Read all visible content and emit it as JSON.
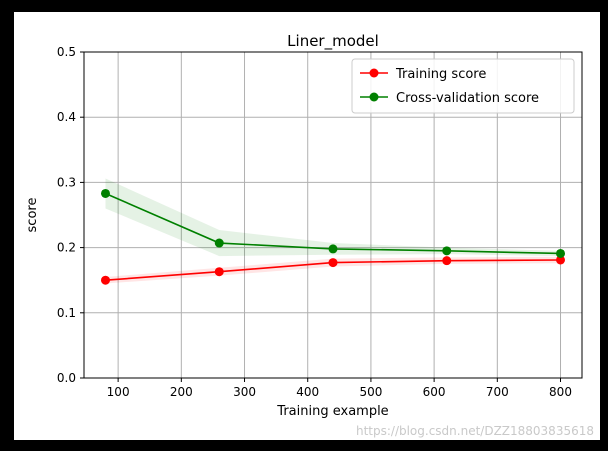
{
  "watermark": "https://blog.csdn.net/DZZ18803835618",
  "chart_data": {
    "type": "line",
    "title": "Liner_model",
    "xlabel": "Training example",
    "ylabel": "score",
    "xlim": [
      46,
      834
    ],
    "ylim": [
      0,
      0.5
    ],
    "xticks": [
      100,
      200,
      300,
      400,
      500,
      600,
      700,
      800
    ],
    "yticks": [
      0.0,
      0.1,
      0.2,
      0.3,
      0.4,
      0.5
    ],
    "grid": true,
    "legend_position": "upper-right",
    "x": [
      80,
      260,
      440,
      620,
      800
    ],
    "series": [
      {
        "name": "Training score",
        "color": "#ff0000",
        "band_color": "#ff0000",
        "values": [
          0.15,
          0.163,
          0.177,
          0.18,
          0.181
        ],
        "upper": [
          0.155,
          0.169,
          0.183,
          0.185,
          0.186
        ],
        "lower": [
          0.145,
          0.157,
          0.171,
          0.175,
          0.176
        ]
      },
      {
        "name": "Cross-validation score",
        "color": "#008000",
        "band_color": "#008000",
        "values": [
          0.283,
          0.207,
          0.198,
          0.195,
          0.191
        ],
        "upper": [
          0.306,
          0.227,
          0.207,
          0.2,
          0.195
        ],
        "lower": [
          0.26,
          0.187,
          0.189,
          0.19,
          0.187
        ]
      }
    ]
  }
}
